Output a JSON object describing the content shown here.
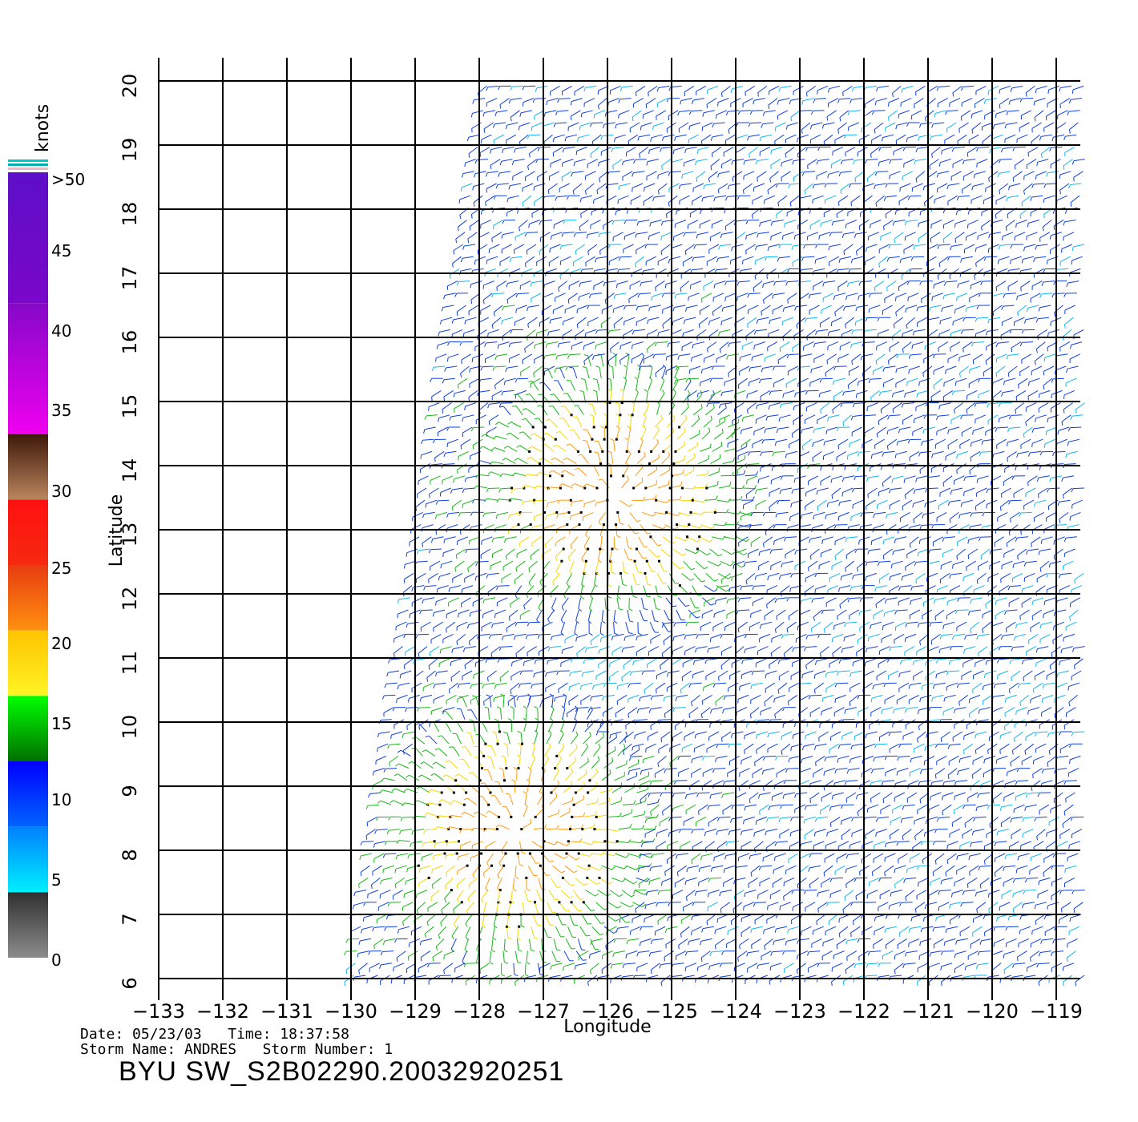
{
  "colorbar": {
    "unit": "knots",
    "labels": [
      ">50",
      "45",
      "40",
      "35",
      "30",
      "25",
      "20",
      "15",
      "10",
      "5",
      "0"
    ],
    "bands": [
      {
        "from": 50,
        "to": 60,
        "top": "#5d0fc8",
        "bottom": "#7a07c9"
      },
      {
        "from": 40,
        "to": 50,
        "top": "#8608c8",
        "bottom": "#ef00ef"
      },
      {
        "from": 35,
        "to": 40,
        "top": "#3e1808",
        "bottom": "#b9855d"
      },
      {
        "from": 30,
        "to": 35,
        "top": "#ff1010",
        "bottom": "#f52a10"
      },
      {
        "from": 25,
        "to": 30,
        "top": "#e83c10",
        "bottom": "#ff9010"
      },
      {
        "from": 20,
        "to": 25,
        "top": "#ffc400",
        "bottom": "#fff424"
      },
      {
        "from": 15,
        "to": 20,
        "top": "#00ff00",
        "bottom": "#006f00"
      },
      {
        "from": 10,
        "to": 15,
        "top": "#0000ff",
        "bottom": "#0064ff"
      },
      {
        "from": 5,
        "to": 10,
        "top": "#0080ff",
        "bottom": "#00f0ff"
      },
      {
        "from": 0,
        "to": 5,
        "top": "#303030",
        "bottom": "#8c8c8c"
      }
    ]
  },
  "map": {
    "xlabel": "Longitude",
    "ylabel": "Latitude",
    "lon_range": [
      -133,
      -118.5
    ],
    "lat_range": [
      6,
      20
    ],
    "lon_ticks": [
      -133,
      -132,
      -131,
      -130,
      -129,
      -128,
      -127,
      -126,
      -125,
      -124,
      -123,
      -122,
      -121,
      -120,
      -119
    ],
    "lat_ticks": [
      6,
      7,
      8,
      9,
      10,
      11,
      12,
      13,
      14,
      15,
      16,
      17,
      18,
      19,
      20
    ],
    "swath_edge": [
      [
        -130.05,
        6
      ],
      [
        -127.95,
        20
      ]
    ],
    "wind_field": {
      "storm_centers": [
        {
          "lon": -125.9,
          "lat": 13.5,
          "max_kt": 31
        },
        {
          "lon": -127.4,
          "lat": 8.3,
          "max_kt": 30
        }
      ],
      "calm_zone": {
        "lon": -126.0,
        "lat": 11.0,
        "min_kt": 8
      },
      "background_kt": 12
    }
  },
  "footer": {
    "date_line": "Date: 05/23/03   Time: 18:37:58",
    "storm_line": "Storm Name: ANDRES   Storm Number: 1",
    "product": "BYU SW_S2B02290.20032920251"
  }
}
